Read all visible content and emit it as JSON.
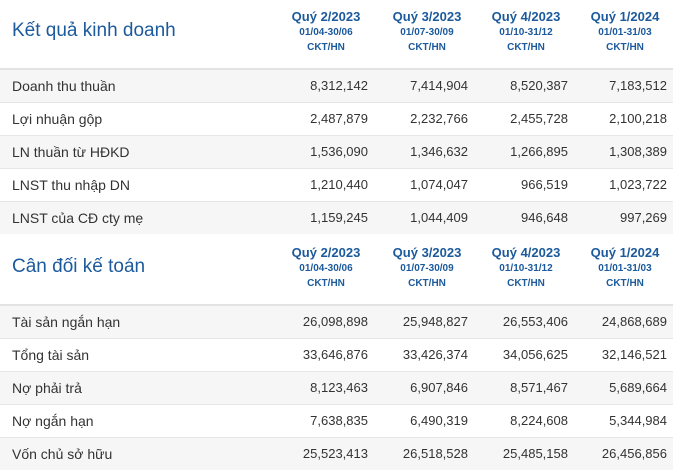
{
  "income": {
    "title": "Kết quả kinh doanh",
    "columns": [
      {
        "quarter": "Quý 2/2023",
        "dates": "01/04-30/06",
        "unit": "CKT/HN"
      },
      {
        "quarter": "Quý 3/2023",
        "dates": "01/07-30/09",
        "unit": "CKT/HN"
      },
      {
        "quarter": "Quý 4/2023",
        "dates": "01/10-31/12",
        "unit": "CKT/HN"
      },
      {
        "quarter": "Quý 1/2024",
        "dates": "01/01-31/03",
        "unit": "CKT/HN"
      }
    ],
    "rows": [
      {
        "label": "Doanh thu thuần",
        "values": [
          "8,312,142",
          "7,414,904",
          "8,520,387",
          "7,183,512"
        ]
      },
      {
        "label": "Lợi nhuận gộp",
        "values": [
          "2,487,879",
          "2,232,766",
          "2,455,728",
          "2,100,218"
        ]
      },
      {
        "label": "LN thuần từ HĐKD",
        "values": [
          "1,536,090",
          "1,346,632",
          "1,266,895",
          "1,308,389"
        ]
      },
      {
        "label": "LNST thu nhập DN",
        "values": [
          "1,210,440",
          "1,074,047",
          "966,519",
          "1,023,722"
        ]
      },
      {
        "label": "LNST của CĐ cty mẹ",
        "values": [
          "1,159,245",
          "1,044,409",
          "946,648",
          "997,269"
        ]
      }
    ]
  },
  "balance": {
    "title": "Cân đối kế toán",
    "columns": [
      {
        "quarter": "Quý 2/2023",
        "dates": "01/04-30/06",
        "unit": "CKT/HN"
      },
      {
        "quarter": "Quý 3/2023",
        "dates": "01/07-30/09",
        "unit": "CKT/HN"
      },
      {
        "quarter": "Quý 4/2023",
        "dates": "01/10-31/12",
        "unit": "CKT/HN"
      },
      {
        "quarter": "Quý 1/2024",
        "dates": "01/01-31/03",
        "unit": "CKT/HN"
      }
    ],
    "rows": [
      {
        "label": "Tài sản ngắn hạn",
        "values": [
          "26,098,898",
          "25,948,827",
          "26,553,406",
          "24,868,689"
        ]
      },
      {
        "label": "Tổng tài sản",
        "values": [
          "33,646,876",
          "33,426,374",
          "34,056,625",
          "32,146,521"
        ]
      },
      {
        "label": "Nợ phải trả",
        "values": [
          "8,123,463",
          "6,907,846",
          "8,571,467",
          "5,689,664"
        ]
      },
      {
        "label": "Nợ ngắn hạn",
        "values": [
          "7,638,835",
          "6,490,319",
          "8,224,608",
          "5,344,984"
        ]
      },
      {
        "label": "Vốn chủ sở hữu",
        "values": [
          "25,523,413",
          "26,518,528",
          "25,485,158",
          "26,456,856"
        ]
      }
    ]
  },
  "colors": {
    "accent": "#1c5a9c",
    "row_alt": "#f6f6f6",
    "text": "#333333"
  }
}
